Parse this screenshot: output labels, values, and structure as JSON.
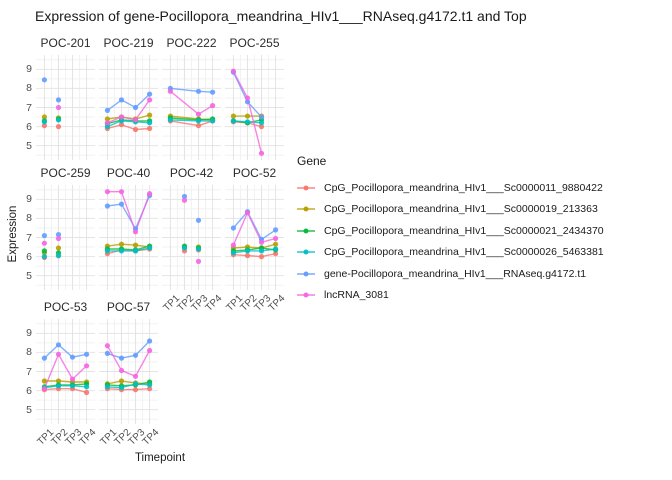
{
  "title": "Expression of gene-Pocillopora_meandrina_HIv1___RNAseq.g4172.t1 and Top",
  "axes": {
    "x_label": "Timepoint",
    "y_label": "Expression",
    "x_ticks": [
      "TP1",
      "TP2",
      "TP3",
      "TP4"
    ],
    "y_ticks": [
      5,
      6,
      7,
      8,
      9
    ]
  },
  "legend": {
    "title": "Gene",
    "position": "right",
    "entries": [
      {
        "label": "CpG_Pocillopora_meandrina_HIv1___Sc0000011_9880422",
        "color": "#F8766D"
      },
      {
        "label": "CpG_Pocillopora_meandrina_HIv1___Sc0000019_213363",
        "color": "#B79F00"
      },
      {
        "label": "CpG_Pocillopora_meandrina_HIv1___Sc0000021_2434370",
        "color": "#00BA38"
      },
      {
        "label": "CpG_Pocillopora_meandrina_HIv1___Sc0000026_5463381",
        "color": "#00BFC4"
      },
      {
        "label": "gene-Pocillopora_meandrina_HIv1___RNAseq.g4172.t1",
        "color": "#619CFF"
      },
      {
        "label": "lncRNA_3081",
        "color": "#F564E2"
      }
    ]
  },
  "chart_data": {
    "type": "line",
    "title": "Expression of gene-Pocillopora_meandrina_HIv1___RNAseq.g4172.t1 and Top",
    "xlabel": "Timepoint",
    "ylabel": "Expression",
    "x": [
      "TP1",
      "TP2",
      "TP3",
      "TP4"
    ],
    "y_domain": [
      4.25,
      9.75
    ],
    "y_ticks": [
      5,
      6,
      7,
      8,
      9
    ],
    "grid": true,
    "legend_position": "right",
    "series_names": [
      "CpG_Pocillopora_meandrina_HIv1___Sc0000011_9880422",
      "CpG_Pocillopora_meandrina_HIv1___Sc0000019_213363",
      "CpG_Pocillopora_meandrina_HIv1___Sc0000021_2434370",
      "CpG_Pocillopora_meandrina_HIv1___Sc0000026_5463381",
      "gene-Pocillopora_meandrina_HIv1___RNAseq.g4172.t1",
      "lncRNA_3081"
    ],
    "facets": [
      {
        "name": "POC-201",
        "row": 0,
        "col": 0,
        "lines": false,
        "values": [
          [
            6.05,
            6.0,
            null,
            null
          ],
          [
            6.5,
            6.45,
            null,
            null
          ],
          [
            6.3,
            6.4,
            null,
            null
          ],
          [
            6.25,
            6.35,
            null,
            null
          ],
          [
            8.45,
            7.4,
            null,
            null
          ],
          [
            null,
            7.0,
            null,
            null
          ]
        ]
      },
      {
        "name": "POC-219",
        "row": 0,
        "col": 1,
        "lines": true,
        "values": [
          [
            5.9,
            6.1,
            5.85,
            5.9
          ],
          [
            6.4,
            6.5,
            6.4,
            6.6
          ],
          [
            6.15,
            6.35,
            6.3,
            6.3
          ],
          [
            6.0,
            6.3,
            6.25,
            6.2
          ],
          [
            6.85,
            7.4,
            7.0,
            7.7
          ],
          [
            6.2,
            6.5,
            6.35,
            7.4
          ]
        ]
      },
      {
        "name": "POC-222",
        "row": 0,
        "col": 2,
        "lines": true,
        "values": [
          [
            6.3,
            null,
            6.05,
            6.3
          ],
          [
            6.55,
            null,
            6.4,
            6.35
          ],
          [
            6.45,
            null,
            6.35,
            6.4
          ],
          [
            6.35,
            null,
            6.3,
            6.3
          ],
          [
            8.0,
            null,
            7.85,
            7.8
          ],
          [
            7.85,
            null,
            6.65,
            7.1
          ]
        ]
      },
      {
        "name": "POC-255",
        "row": 0,
        "col": 3,
        "lines": true,
        "values": [
          [
            6.25,
            6.2,
            6.0,
            null
          ],
          [
            6.55,
            6.55,
            6.55,
            null
          ],
          [
            6.3,
            6.2,
            6.35,
            null
          ],
          [
            6.3,
            6.25,
            6.2,
            null
          ],
          [
            8.85,
            7.3,
            6.5,
            null
          ],
          [
            8.9,
            7.5,
            4.6,
            null
          ]
        ]
      },
      {
        "name": "POC-259",
        "row": 1,
        "col": 0,
        "lines": false,
        "values": [
          [
            5.95,
            6.05,
            null,
            null
          ],
          [
            6.2,
            6.45,
            null,
            null
          ],
          [
            6.3,
            6.2,
            null,
            null
          ],
          [
            6.0,
            6.05,
            null,
            null
          ],
          [
            7.1,
            7.15,
            null,
            null
          ],
          [
            6.7,
            6.95,
            null,
            null
          ]
        ]
      },
      {
        "name": "POC-40",
        "row": 1,
        "col": 1,
        "lines": true,
        "values": [
          [
            6.15,
            6.35,
            6.3,
            6.4
          ],
          [
            6.55,
            6.65,
            6.6,
            6.5
          ],
          [
            6.4,
            6.4,
            6.35,
            6.55
          ],
          [
            6.3,
            6.3,
            6.3,
            6.45
          ],
          [
            8.65,
            8.75,
            7.45,
            9.2
          ],
          [
            9.4,
            9.4,
            7.3,
            9.3
          ]
        ]
      },
      {
        "name": "POC-42",
        "row": 1,
        "col": 2,
        "lines": false,
        "values": [
          [
            null,
            6.3,
            6.35,
            null
          ],
          [
            null,
            6.5,
            6.5,
            null
          ],
          [
            null,
            6.55,
            6.45,
            null
          ],
          [
            null,
            6.45,
            6.4,
            null
          ],
          [
            null,
            9.15,
            7.9,
            null
          ],
          [
            null,
            8.95,
            5.75,
            null
          ]
        ]
      },
      {
        "name": "POC-52",
        "row": 1,
        "col": 3,
        "lines": true,
        "values": [
          [
            6.1,
            6.05,
            6.0,
            6.15
          ],
          [
            6.45,
            6.5,
            6.45,
            6.65
          ],
          [
            6.3,
            6.35,
            6.45,
            6.35
          ],
          [
            6.2,
            6.3,
            6.3,
            6.4
          ],
          [
            7.5,
            8.35,
            6.9,
            7.4
          ],
          [
            6.6,
            8.3,
            6.75,
            6.95
          ]
        ]
      },
      {
        "name": "POC-53",
        "row": 2,
        "col": 0,
        "lines": true,
        "values": [
          [
            6.05,
            6.1,
            6.1,
            5.9
          ],
          [
            6.5,
            6.5,
            6.45,
            6.45
          ],
          [
            6.2,
            6.3,
            6.3,
            6.35
          ],
          [
            6.15,
            6.25,
            6.25,
            6.2
          ],
          [
            7.7,
            8.4,
            7.75,
            7.9
          ],
          [
            6.1,
            7.9,
            6.6,
            7.3
          ]
        ]
      },
      {
        "name": "POC-57",
        "row": 2,
        "col": 1,
        "lines": true,
        "values": [
          [
            6.1,
            6.05,
            6.05,
            6.1
          ],
          [
            6.35,
            6.5,
            6.4,
            6.35
          ],
          [
            6.3,
            6.25,
            6.3,
            6.45
          ],
          [
            6.2,
            6.15,
            6.35,
            6.3
          ],
          [
            7.95,
            7.7,
            7.85,
            8.6
          ],
          [
            8.35,
            7.05,
            6.75,
            8.1
          ]
        ]
      }
    ]
  }
}
